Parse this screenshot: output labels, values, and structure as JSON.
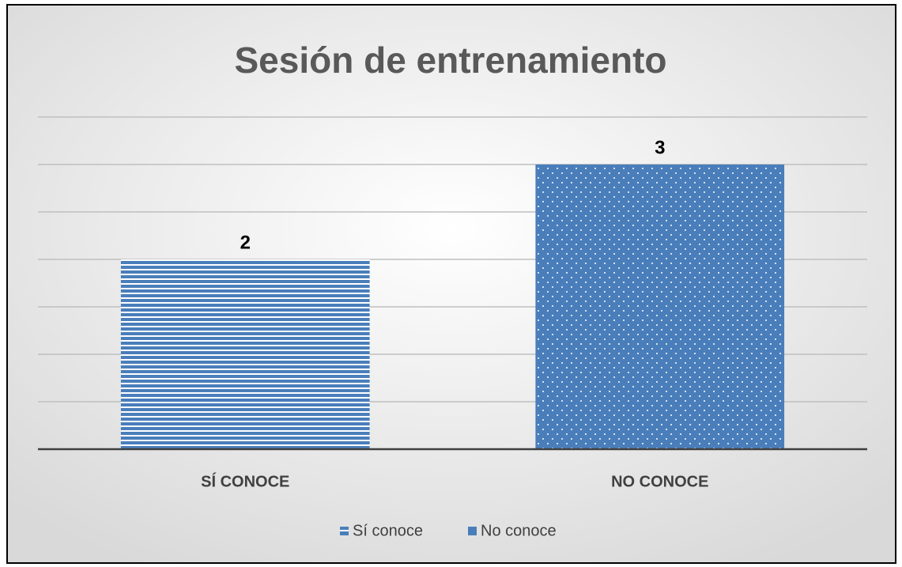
{
  "chart_data": {
    "type": "bar",
    "title": "Sesión de entrenamiento",
    "categories": [
      "SÍ CONOCE",
      "NO CONOCE"
    ],
    "series": [
      {
        "name": "Sí conoce",
        "color": "#4a7ebb",
        "pattern": "horizontal",
        "values": [
          2,
          null
        ]
      },
      {
        "name": "No conoce",
        "color": "#4a7ebb",
        "pattern": "dots",
        "values": [
          null,
          3
        ]
      }
    ],
    "ylim": [
      0,
      3.5
    ],
    "yticks": [
      0,
      0.5,
      1,
      1.5,
      2,
      2.5,
      3,
      3.5
    ],
    "grid": true,
    "data_labels": true,
    "legend": "bottom"
  }
}
